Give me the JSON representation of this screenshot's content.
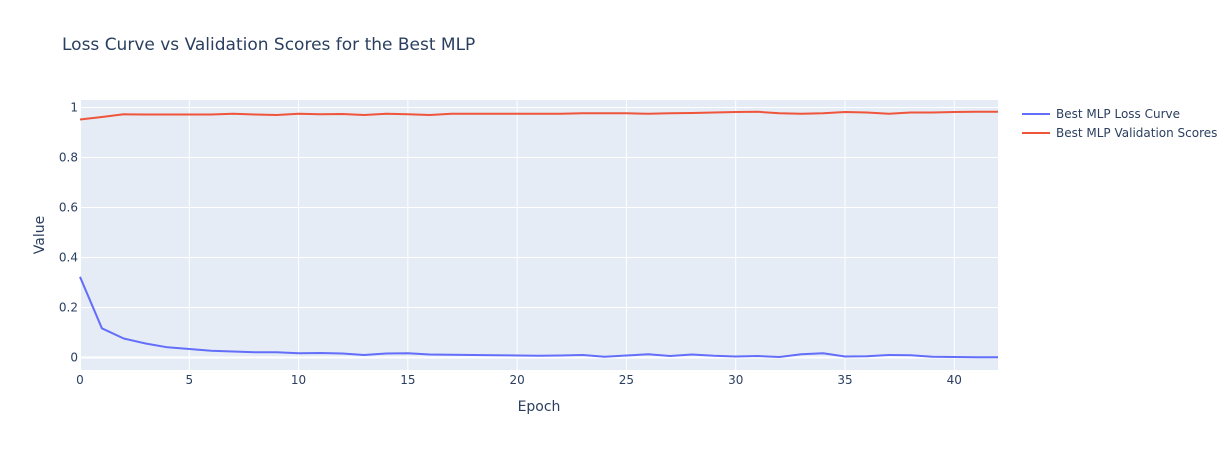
{
  "chart_data": {
    "type": "line",
    "title": "Loss Curve vs Validation Scores for the Best MLP",
    "xlabel": "Epoch",
    "ylabel": "Value",
    "xlim": [
      0,
      42
    ],
    "ylim": [
      -0.05,
      1.03
    ],
    "x_ticks": [
      0,
      5,
      10,
      15,
      20,
      25,
      30,
      35,
      40
    ],
    "y_ticks": [
      0,
      0.2,
      0.4,
      0.6,
      0.8,
      1
    ],
    "y_tick_labels": [
      "0",
      "0.2",
      "0.4",
      "0.6",
      "0.8",
      "1"
    ],
    "grid": true,
    "legend_position": "top-right, outside plot",
    "x": [
      0,
      1,
      2,
      3,
      4,
      5,
      6,
      7,
      8,
      9,
      10,
      11,
      12,
      13,
      14,
      15,
      16,
      17,
      18,
      19,
      20,
      21,
      22,
      23,
      24,
      25,
      26,
      27,
      28,
      29,
      30,
      31,
      32,
      33,
      34,
      35,
      36,
      37,
      38,
      39,
      40,
      41,
      42
    ],
    "series": [
      {
        "name": "Best MLP Loss Curve",
        "color": "#636efa",
        "values": [
          0.323,
          0.117,
          0.076,
          0.056,
          0.041,
          0.034,
          0.027,
          0.024,
          0.021,
          0.021,
          0.017,
          0.018,
          0.016,
          0.01,
          0.016,
          0.017,
          0.012,
          0.011,
          0.01,
          0.009,
          0.008,
          0.007,
          0.008,
          0.01,
          0.003,
          0.008,
          0.013,
          0.006,
          0.012,
          0.007,
          0.004,
          0.006,
          0.002,
          0.013,
          0.017,
          0.004,
          0.005,
          0.01,
          0.009,
          0.003,
          0.002,
          0.001,
          0.001
        ]
      },
      {
        "name": "Best MLP Validation Scores",
        "color": "#ef553b",
        "values": [
          0.952,
          0.962,
          0.973,
          0.972,
          0.972,
          0.972,
          0.972,
          0.975,
          0.972,
          0.97,
          0.975,
          0.973,
          0.974,
          0.97,
          0.975,
          0.973,
          0.97,
          0.975,
          0.975,
          0.975,
          0.975,
          0.975,
          0.975,
          0.977,
          0.977,
          0.977,
          0.975,
          0.977,
          0.978,
          0.98,
          0.982,
          0.983,
          0.977,
          0.975,
          0.977,
          0.982,
          0.98,
          0.975,
          0.98,
          0.98,
          0.982,
          0.983,
          0.983
        ]
      }
    ]
  }
}
